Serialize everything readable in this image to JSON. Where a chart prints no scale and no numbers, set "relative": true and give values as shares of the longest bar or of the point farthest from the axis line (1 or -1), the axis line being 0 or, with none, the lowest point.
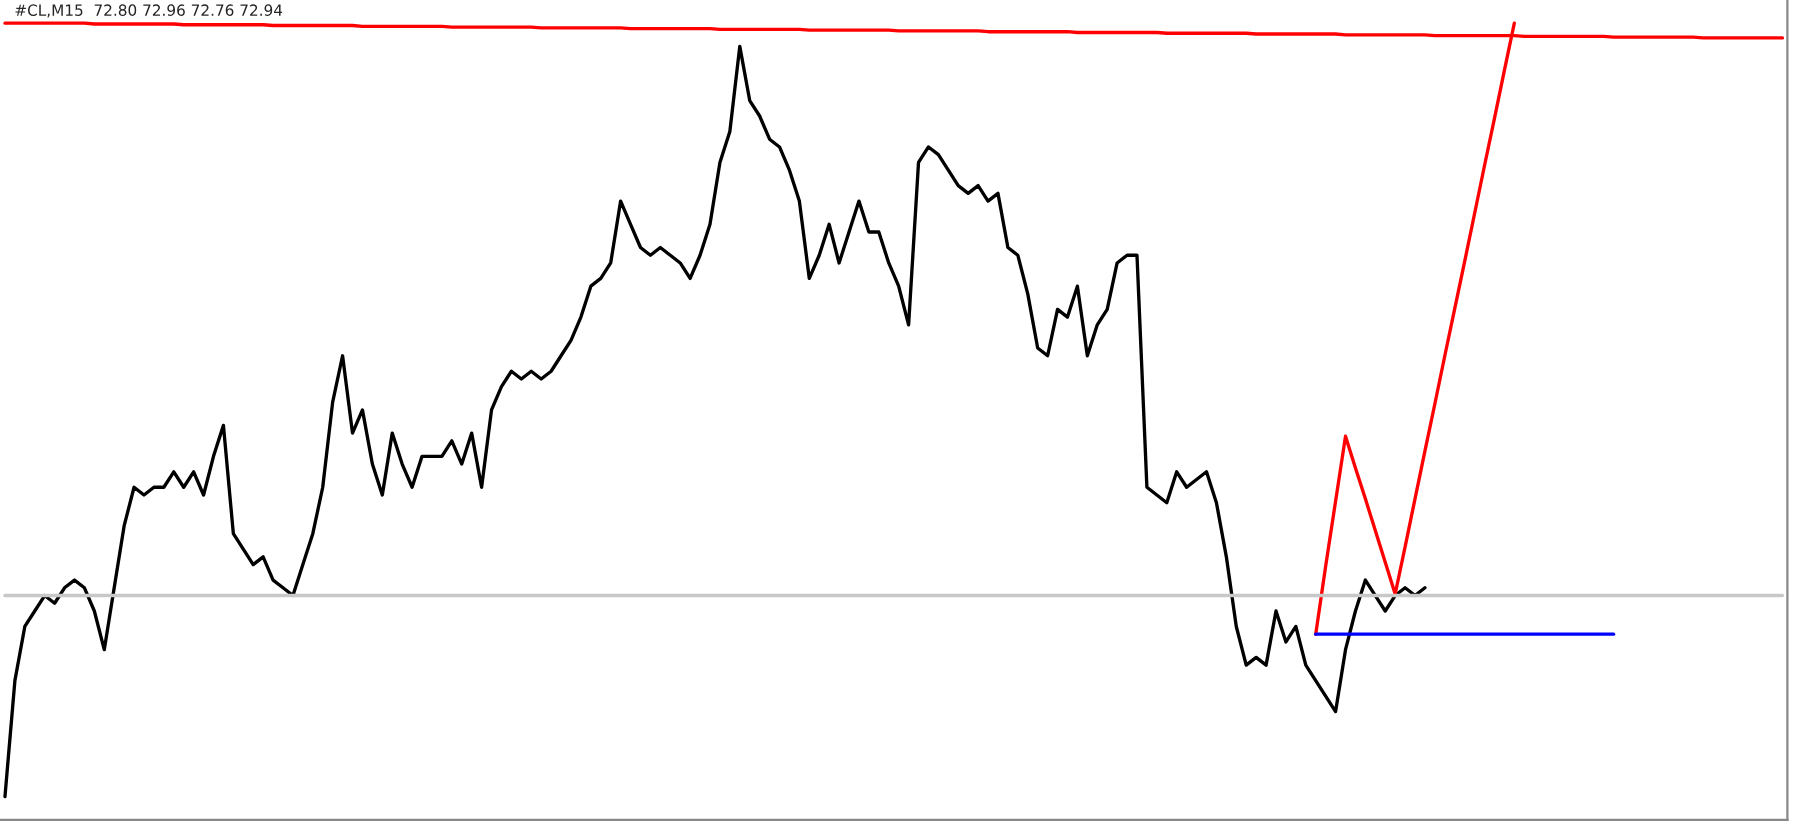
{
  "chart_data": {
    "type": "line",
    "relative": true,
    "title": "#CL,M15  72.80 72.96 72.76 72.94",
    "categories": [
      null,
      null,
      null,
      null,
      null,
      null,
      null,
      null,
      null,
      null,
      null,
      null,
      null,
      null,
      null,
      null,
      null,
      null,
      null,
      null,
      null,
      null,
      null,
      null,
      null,
      null,
      null,
      null,
      null,
      null,
      null,
      null,
      null,
      null,
      null,
      null,
      null,
      null,
      null,
      null,
      null,
      null,
      null,
      null,
      null,
      null,
      null,
      null,
      null,
      null,
      null,
      null,
      null,
      null,
      null,
      null,
      null,
      null,
      null,
      null,
      null,
      null,
      null,
      null,
      null,
      null,
      null,
      null,
      null,
      null,
      null,
      null,
      null,
      null,
      null,
      null,
      null,
      null,
      null,
      null,
      null,
      null,
      null,
      null,
      null,
      null,
      null,
      null,
      null,
      null,
      null,
      null,
      null,
      null,
      null,
      null,
      null,
      null,
      null,
      null,
      null,
      null,
      null,
      null,
      null,
      null,
      null,
      null,
      null,
      null,
      null,
      null,
      null,
      null,
      null,
      null,
      null,
      null,
      null,
      null,
      null,
      null,
      null,
      null,
      null,
      null,
      null,
      null,
      null,
      null,
      null,
      null,
      null,
      null,
      null,
      null,
      null,
      null,
      null,
      null,
      null,
      null,
      null,
      null,
      null,
      null,
      null,
      null,
      null,
      null,
      null,
      null,
      null,
      null,
      null,
      null,
      null,
      null,
      null,
      null,
      null,
      null,
      null,
      null,
      null,
      null,
      null,
      null,
      null,
      null,
      null,
      null,
      null,
      null,
      null,
      null,
      null,
      null,
      null,
      null
    ],
    "series": [
      {
        "color": "#000000",
        "values": [
          0,
          0.15,
          0.22,
          0.24,
          0.26,
          0.25,
          0.27,
          0.28,
          0.27,
          0.24,
          0.19,
          0.27,
          0.35,
          0.4,
          0.39,
          0.4,
          0.4,
          0.42,
          0.4,
          0.42,
          0.39,
          0.44,
          0.48,
          0.34,
          0.32,
          0.3,
          0.31,
          0.28,
          0.27,
          0.26,
          0.3,
          0.34,
          0.4,
          0.51,
          0.57,
          0.47,
          0.5,
          0.43,
          0.39,
          0.47,
          0.43,
          0.4,
          0.44,
          0.44,
          0.44,
          0.46,
          0.43,
          0.47,
          0.4,
          0.5,
          0.53,
          0.55,
          0.54,
          0.55,
          0.54,
          0.55,
          0.57,
          0.59,
          0.62,
          0.66,
          0.67,
          0.69,
          0.77,
          0.74,
          0.71,
          0.7,
          0.71,
          0.7,
          0.69,
          0.67,
          0.7,
          0.74,
          0.82,
          0.86,
          0.97,
          0.9,
          0.88,
          0.85,
          0.84,
          0.81,
          0.77,
          0.67,
          0.7,
          0.74,
          0.69,
          0.73,
          0.77,
          0.73,
          0.73,
          0.69,
          0.66,
          0.61,
          0.82,
          0.84,
          0.83,
          0.81,
          0.79,
          0.78,
          0.79,
          0.77,
          0.78,
          0.71,
          0.7,
          0.65,
          0.58,
          0.57,
          0.63,
          0.62,
          0.66,
          0.57,
          0.61,
          0.63,
          0.69,
          0.7,
          0.7,
          0.4,
          0.39,
          0.38,
          0.42,
          0.4,
          0.41,
          0.42,
          0.38,
          0.31,
          0.22,
          0.17,
          0.18,
          0.17,
          0.24,
          0.2,
          0.22,
          0.17,
          0.15,
          0.13,
          0.11,
          0.19,
          0.24,
          0.28,
          0.26,
          0.24,
          0.26,
          0.27,
          0.26,
          0.27,
          null,
          null,
          null,
          null,
          null,
          null,
          null,
          null,
          null,
          null,
          null,
          null,
          null,
          null,
          null,
          null,
          null,
          null,
          null,
          null,
          null,
          null,
          null,
          null,
          null,
          null,
          null,
          null,
          null,
          null,
          null,
          null,
          null,
          null,
          null,
          null
        ]
      },
      {
        "color": "#ff0000",
        "values": [
          1.0,
          1.0,
          1.0,
          1.0,
          1.0,
          1.0,
          1.0,
          1.0,
          1.0,
          0.999,
          0.999,
          0.999,
          0.999,
          0.999,
          0.999,
          0.999,
          0.999,
          0.999,
          0.998,
          0.998,
          0.998,
          0.998,
          0.998,
          0.998,
          0.998,
          0.998,
          0.998,
          0.997,
          0.997,
          0.997,
          0.997,
          0.997,
          0.997,
          0.997,
          0.997,
          0.997,
          0.996,
          0.996,
          0.996,
          0.996,
          0.996,
          0.996,
          0.996,
          0.996,
          0.996,
          0.995,
          0.995,
          0.995,
          0.995,
          0.995,
          0.995,
          0.995,
          0.995,
          0.995,
          0.994,
          0.994,
          0.994,
          0.994,
          0.994,
          0.994,
          0.994,
          0.994,
          0.994,
          0.993,
          0.993,
          0.993,
          0.993,
          0.993,
          0.993,
          0.993,
          0.993,
          0.993,
          0.992,
          0.992,
          0.992,
          0.992,
          0.992,
          0.992,
          0.992,
          0.992,
          0.992,
          0.991,
          0.991,
          0.991,
          0.991,
          0.991,
          0.991,
          0.991,
          0.991,
          0.991,
          0.99,
          0.99,
          0.99,
          0.99,
          0.99,
          0.99,
          0.99,
          0.99,
          0.99,
          0.989,
          0.989,
          0.989,
          0.989,
          0.989,
          0.989,
          0.989,
          0.989,
          0.989,
          0.988,
          0.988,
          0.988,
          0.988,
          0.988,
          0.988,
          0.988,
          0.988,
          0.988,
          0.987,
          0.987,
          0.987,
          0.987,
          0.987,
          0.987,
          0.987,
          0.987,
          0.987,
          0.986,
          0.986,
          0.986,
          0.986,
          0.986,
          0.986,
          0.986,
          0.986,
          0.986,
          0.985,
          0.985,
          0.985,
          0.985,
          0.985,
          0.985,
          0.985,
          0.985,
          0.985,
          0.984,
          0.984,
          0.984,
          0.984,
          0.984,
          0.984,
          0.984,
          0.984,
          0.984,
          0.983,
          0.983,
          0.983,
          0.983,
          0.983,
          0.983,
          0.983,
          0.983,
          0.983,
          0.982,
          0.982,
          0.982,
          0.982,
          0.982,
          0.982,
          0.982,
          0.982,
          0.982,
          0.981,
          0.981,
          0.981,
          0.981,
          0.981,
          0.981,
          0.981,
          0.981,
          0.981
        ]
      },
      {
        "color": "#ff0000",
        "values": [
          null,
          null,
          null,
          null,
          null,
          null,
          null,
          null,
          null,
          null,
          null,
          null,
          null,
          null,
          null,
          null,
          null,
          null,
          null,
          null,
          null,
          null,
          null,
          null,
          null,
          null,
          null,
          null,
          null,
          null,
          null,
          null,
          null,
          null,
          null,
          null,
          null,
          null,
          null,
          null,
          null,
          null,
          null,
          null,
          null,
          null,
          null,
          null,
          null,
          null,
          null,
          null,
          null,
          null,
          null,
          null,
          null,
          null,
          null,
          null,
          null,
          null,
          null,
          null,
          null,
          null,
          null,
          null,
          null,
          null,
          null,
          null,
          null,
          null,
          null,
          null,
          null,
          null,
          null,
          null,
          null,
          null,
          null,
          null,
          null,
          null,
          null,
          null,
          null,
          null,
          null,
          null,
          null,
          null,
          null,
          null,
          null,
          null,
          null,
          null,
          null,
          null,
          null,
          null,
          null,
          null,
          null,
          null,
          null,
          null,
          null,
          null,
          null,
          null,
          null,
          null,
          null,
          null,
          null,
          null,
          null,
          null,
          null,
          null,
          null,
          null,
          null,
          null,
          null,
          null,
          null,
          null,
          0.21,
          0.298,
          0.382,
          0.466,
          0.425,
          0.385,
          0.344,
          0.303,
          0.262,
          0.323,
          0.385,
          0.447,
          0.508,
          0.57,
          0.631,
          0.692,
          0.754,
          0.816,
          0.877,
          0.939,
          1.0,
          null,
          null,
          null,
          null,
          null,
          null,
          null,
          null,
          null,
          null,
          null,
          null,
          null,
          null,
          null,
          null,
          null,
          null,
          null,
          null,
          null,
          null,
          null,
          null,
          null,
          null,
          null
        ]
      },
      {
        "color": "#0000ff",
        "values": [
          null,
          null,
          null,
          null,
          null,
          null,
          null,
          null,
          null,
          null,
          null,
          null,
          null,
          null,
          null,
          null,
          null,
          null,
          null,
          null,
          null,
          null,
          null,
          null,
          null,
          null,
          null,
          null,
          null,
          null,
          null,
          null,
          null,
          null,
          null,
          null,
          null,
          null,
          null,
          null,
          null,
          null,
          null,
          null,
          null,
          null,
          null,
          null,
          null,
          null,
          null,
          null,
          null,
          null,
          null,
          null,
          null,
          null,
          null,
          null,
          null,
          null,
          null,
          null,
          null,
          null,
          null,
          null,
          null,
          null,
          null,
          null,
          null,
          null,
          null,
          null,
          null,
          null,
          null,
          null,
          null,
          null,
          null,
          null,
          null,
          null,
          null,
          null,
          null,
          null,
          null,
          null,
          null,
          null,
          null,
          null,
          null,
          null,
          null,
          null,
          null,
          null,
          null,
          null,
          null,
          null,
          null,
          null,
          null,
          null,
          null,
          null,
          null,
          null,
          null,
          null,
          null,
          null,
          null,
          null,
          null,
          null,
          null,
          null,
          null,
          null,
          null,
          null,
          null,
          null,
          null,
          null,
          0.21,
          0.21,
          0.21,
          0.21,
          0.21,
          0.21,
          0.21,
          0.21,
          0.21,
          0.21,
          0.21,
          0.21,
          0.21,
          0.21,
          0.21,
          0.21,
          0.21,
          0.21,
          0.21,
          0.21,
          0.21,
          0.21,
          0.21,
          0.21,
          0.21,
          0.21,
          0.21,
          0.21,
          0.21,
          0.21,
          0.21,
          null,
          null,
          null,
          null,
          null,
          null,
          null,
          null,
          null,
          null,
          null,
          null,
          null,
          null,
          null,
          null,
          null
        ]
      },
      {
        "color": "#c8c8c8",
        "values": [
          0.26,
          0.26,
          0.26,
          0.26,
          0.26,
          0.26,
          0.26,
          0.26,
          0.26,
          0.26,
          0.26,
          0.26,
          0.26,
          0.26,
          0.26,
          0.26,
          0.26,
          0.26,
          0.26,
          0.26,
          0.26,
          0.26,
          0.26,
          0.26,
          0.26,
          0.26,
          0.26,
          0.26,
          0.26,
          0.26,
          0.26,
          0.26,
          0.26,
          0.26,
          0.26,
          0.26,
          0.26,
          0.26,
          0.26,
          0.26,
          0.26,
          0.26,
          0.26,
          0.26,
          0.26,
          0.26,
          0.26,
          0.26,
          0.26,
          0.26,
          0.26,
          0.26,
          0.26,
          0.26,
          0.26,
          0.26,
          0.26,
          0.26,
          0.26,
          0.26,
          0.26,
          0.26,
          0.26,
          0.26,
          0.26,
          0.26,
          0.26,
          0.26,
          0.26,
          0.26,
          0.26,
          0.26,
          0.26,
          0.26,
          0.26,
          0.26,
          0.26,
          0.26,
          0.26,
          0.26,
          0.26,
          0.26,
          0.26,
          0.26,
          0.26,
          0.26,
          0.26,
          0.26,
          0.26,
          0.26,
          0.26,
          0.26,
          0.26,
          0.26,
          0.26,
          0.26,
          0.26,
          0.26,
          0.26,
          0.26,
          0.26,
          0.26,
          0.26,
          0.26,
          0.26,
          0.26,
          0.26,
          0.26,
          0.26,
          0.26,
          0.26,
          0.26,
          0.26,
          0.26,
          0.26,
          0.26,
          0.26,
          0.26,
          0.26,
          0.26,
          0.26,
          0.26,
          0.26,
          0.26,
          0.26,
          0.26,
          0.26,
          0.26,
          0.26,
          0.26,
          0.26,
          0.26,
          0.26,
          0.26,
          0.26,
          0.26,
          0.26,
          0.26,
          0.26,
          0.26,
          0.26,
          0.26,
          0.26,
          0.26,
          0.26,
          0.26,
          0.26,
          0.26,
          0.26,
          0.26,
          0.26,
          0.26,
          0.26,
          0.26,
          0.26,
          0.26,
          0.26,
          0.26,
          0.26,
          0.26,
          0.26,
          0.26,
          0.26,
          0.26,
          0.26,
          0.26,
          0.26,
          0.26,
          0.26,
          0.26,
          0.26,
          0.26,
          0.26,
          0.26,
          0.26,
          0.26,
          0.26,
          0.26,
          0.26,
          0.26
        ]
      }
    ],
    "line_style": "solid",
    "marker": "none"
  }
}
